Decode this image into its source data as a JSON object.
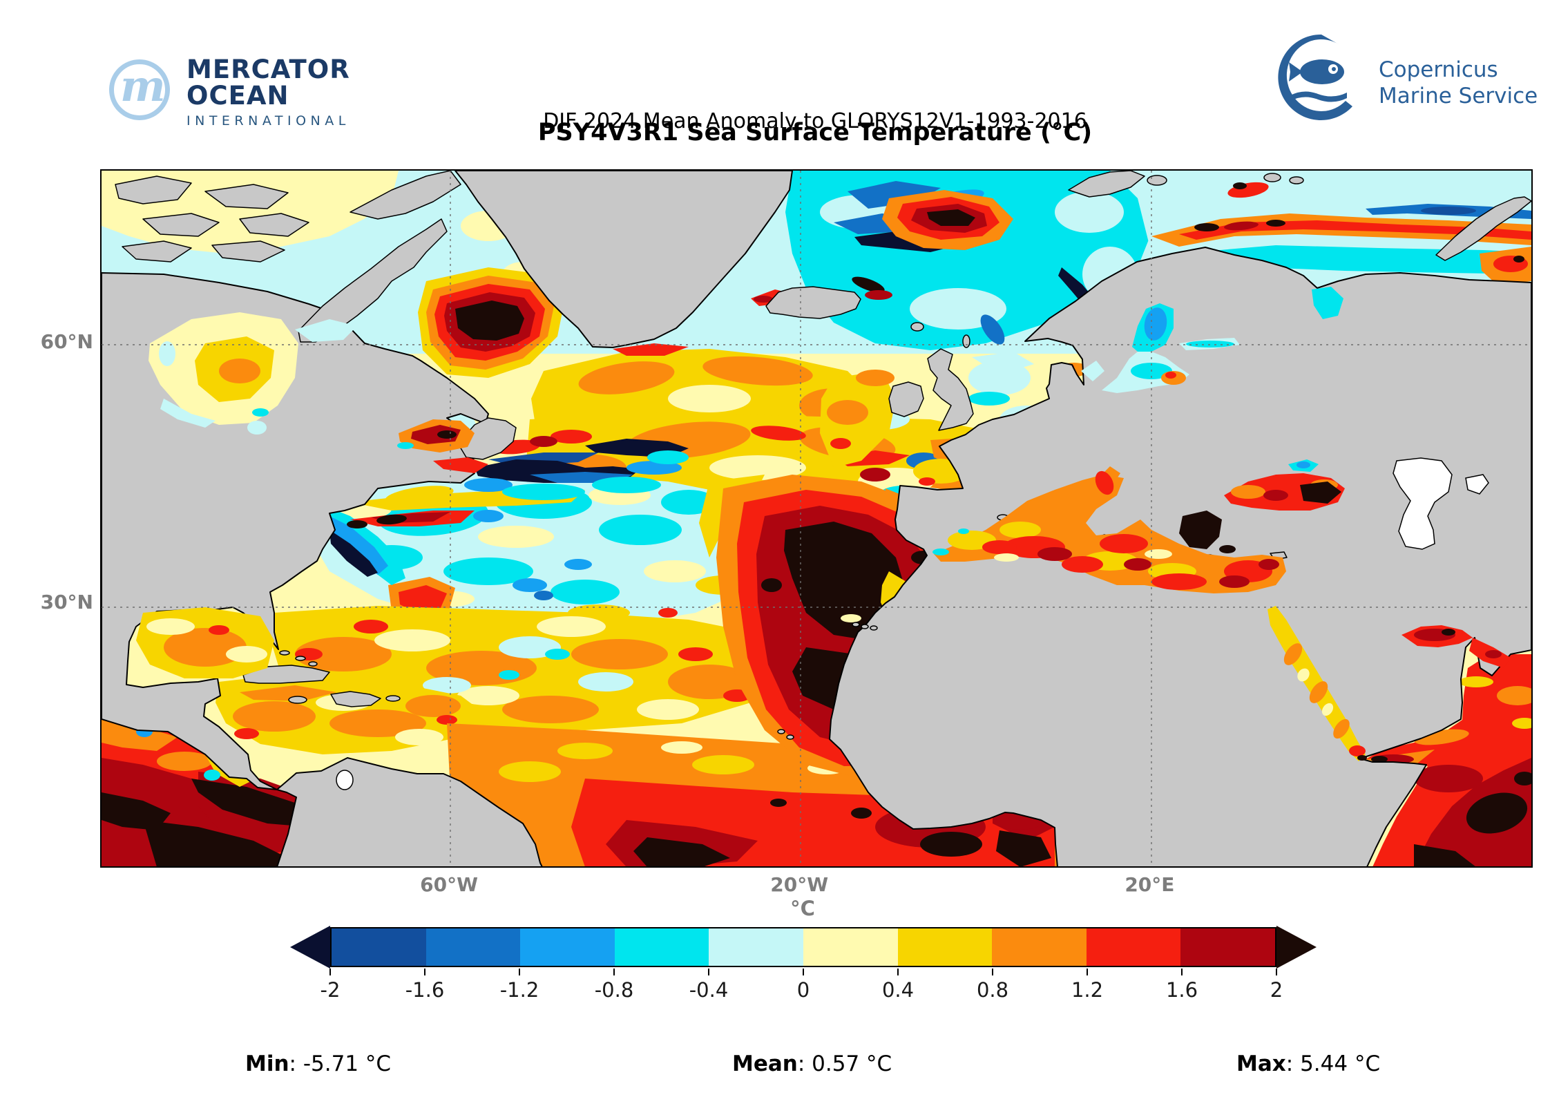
{
  "header": {
    "mercator": {
      "monogram": "m",
      "line1": "MERCATOR",
      "line2": "OCEAN",
      "line3": "INTERNATIONAL"
    },
    "copernicus": {
      "line1": "Copernicus",
      "line2": "Marine Service"
    },
    "subtitle": "DJF 2024 Mean Anomaly to GLORYS12V1-1993-2016",
    "title": "PSY4V3R1 Sea Surface Temperature (°C)"
  },
  "map": {
    "y_ticks": [
      {
        "label": "60°N",
        "y_pct": 24.9
      },
      {
        "label": "30°N",
        "y_pct": 62.4
      }
    ],
    "x_ticks": [
      {
        "label": "60°W",
        "x_pct": 24.4
      },
      {
        "label": "20°W",
        "x_pct": 48.9
      },
      {
        "label": "20°E",
        "x_pct": 73.4
      }
    ],
    "land_color": "#c8c8c8",
    "no_data_color": "#ffffff",
    "grid_color": "#6e6e6e"
  },
  "colorbar": {
    "label": "°C",
    "ticks": [
      "-2",
      "-1.6",
      "-1.2",
      "-0.8",
      "-0.4",
      "0",
      "0.4",
      "0.8",
      "1.2",
      "1.6",
      "2"
    ],
    "colors": [
      "#124f9e",
      "#1271c6",
      "#15a1f2",
      "#00e5ee",
      "#c5f7f7",
      "#fffab0",
      "#f7d500",
      "#fb8b0e",
      "#f51f10",
      "#ae0510"
    ],
    "under_color": "#0a1030",
    "over_color": "#1b0a06"
  },
  "stats": {
    "min_label": "Min",
    "min_value": ": -5.71 °C",
    "mean_label": "Mean",
    "mean_value": ": 0.57 °C",
    "max_label": "Max",
    "max_value": ": 5.44 °C"
  }
}
